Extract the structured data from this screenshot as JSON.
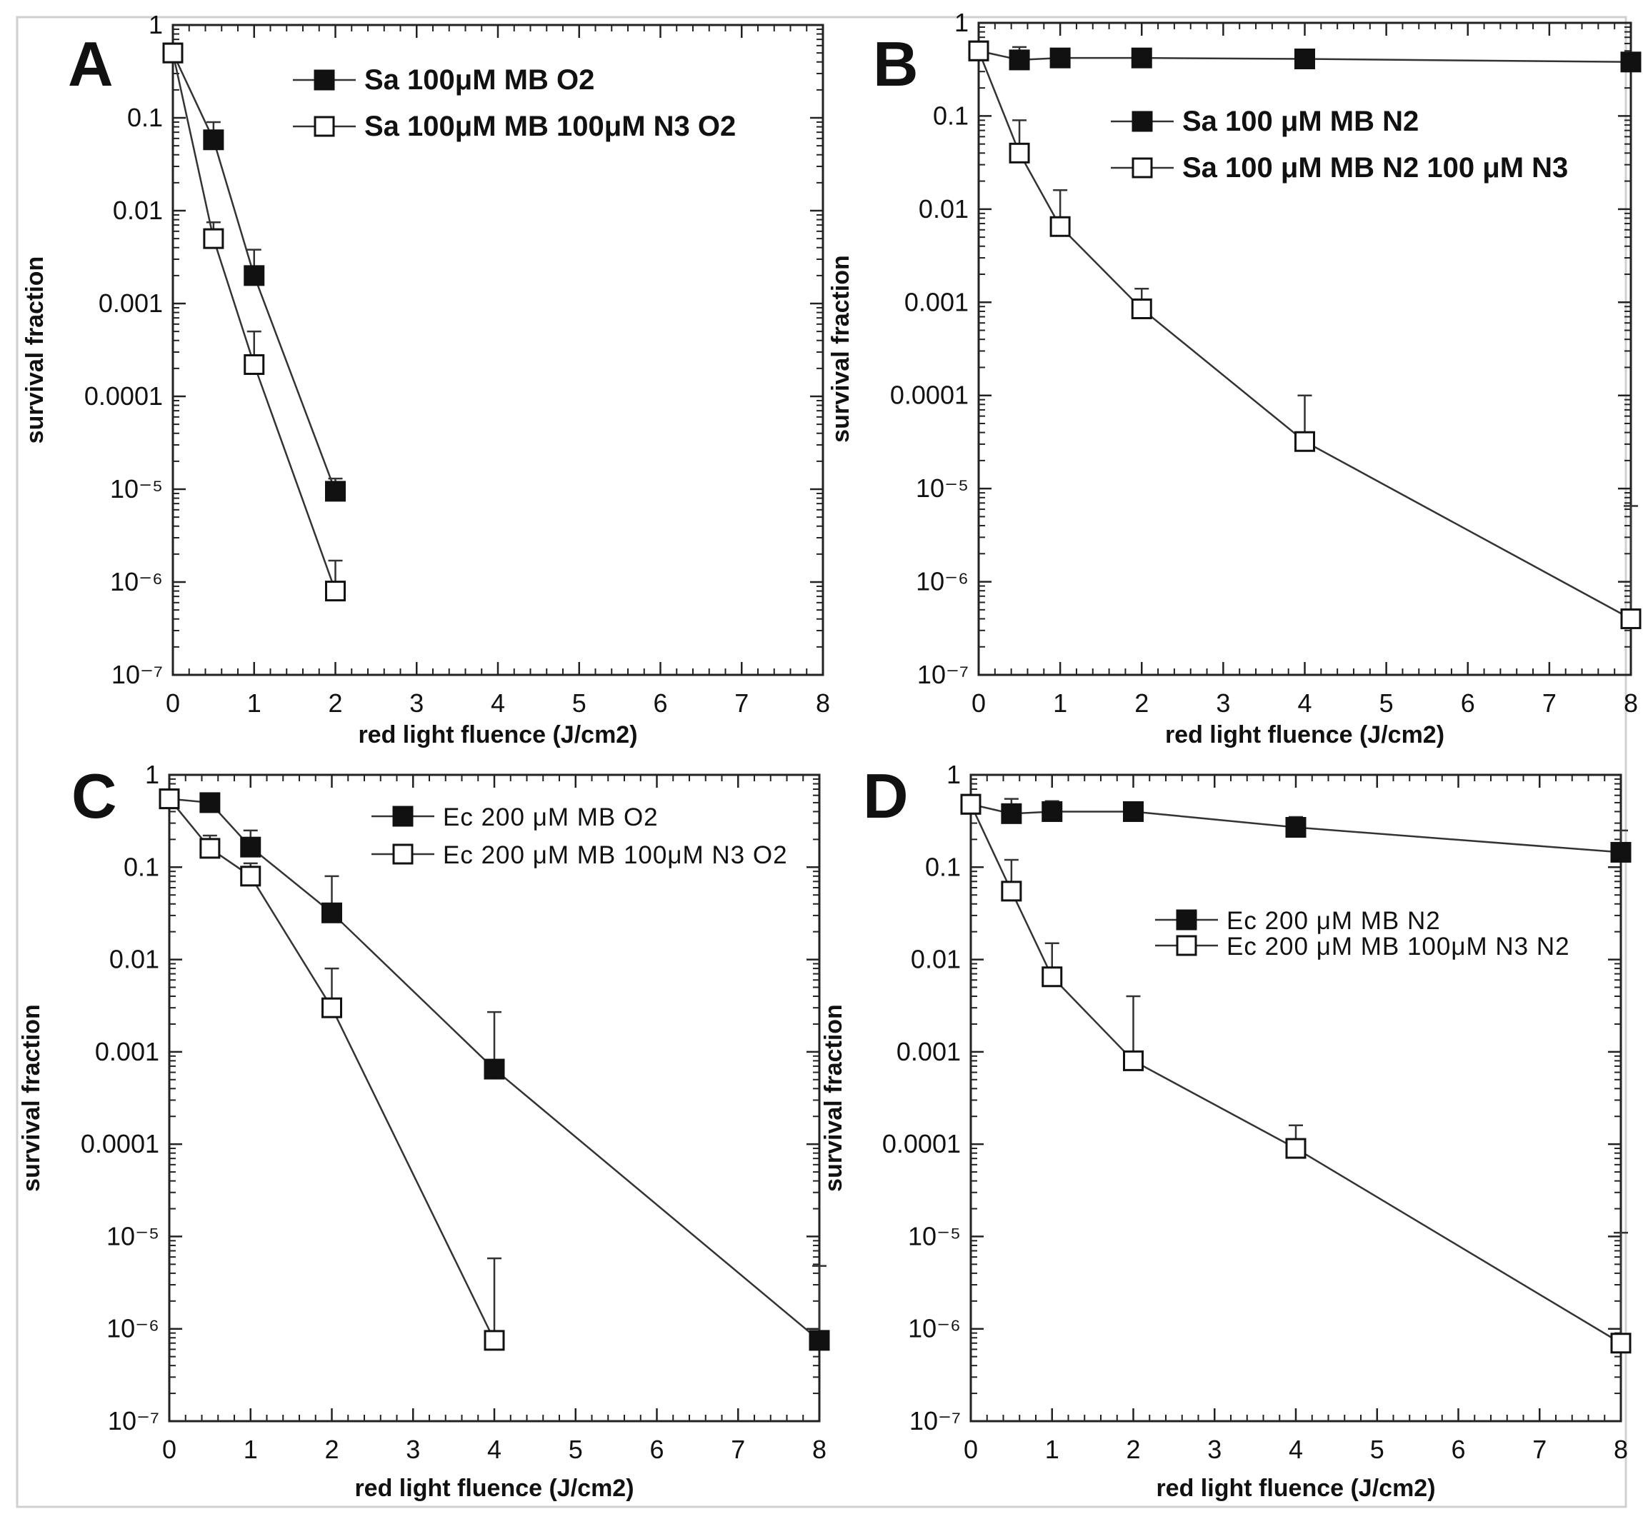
{
  "figure_title": "",
  "chart_data": [
    {
      "type": "line",
      "panel_label": "A",
      "xlabel": "red light fluence (J/cm2)",
      "ylabel": "survival fraction",
      "xlim": [
        0,
        8
      ],
      "ylim_log10": [
        -7,
        0
      ],
      "yscale": "log",
      "x_ticks": [
        "0",
        "1",
        "2",
        "3",
        "4",
        "5",
        "6",
        "7",
        "8"
      ],
      "y_ticks": [
        "1",
        "0.1",
        "0.01",
        "0.001",
        "0.0001",
        "10⁻⁵",
        "10⁻⁶",
        "10⁻⁷"
      ],
      "legend_position": "top-right",
      "series": [
        {
          "name": "Sa 100μM MB O2",
          "marker": "filled-square",
          "x": [
            0,
            0.5,
            1,
            2
          ],
          "y": [
            0.5,
            0.058,
            0.002,
            9.5e-06
          ],
          "err_upper": [
            null,
            0.09,
            0.0038,
            1.3e-05
          ]
        },
        {
          "name": "Sa 100μM MB  100μM N3 O2",
          "marker": "open-square",
          "x": [
            0,
            0.5,
            1,
            2
          ],
          "y": [
            0.5,
            0.005,
            0.00022,
            8e-07
          ],
          "err_upper": [
            null,
            0.0075,
            0.0005,
            1.7e-06
          ]
        }
      ]
    },
    {
      "type": "line",
      "panel_label": "B",
      "xlabel": "red light fluence (J/cm2)",
      "ylabel": "survival fraction",
      "xlim": [
        0,
        8
      ],
      "ylim_log10": [
        -7,
        0
      ],
      "yscale": "log",
      "x_ticks": [
        "0",
        "1",
        "2",
        "3",
        "4",
        "5",
        "6",
        "7",
        "8"
      ],
      "y_ticks": [
        "1",
        "0.1",
        "0.01",
        "0.001",
        "0.0001",
        "10⁻⁵",
        "10⁻⁶",
        "10⁻⁷"
      ],
      "legend_position": "top-right",
      "series": [
        {
          "name": "Sa 100 μM MB N2",
          "marker": "filled-square",
          "x": [
            0,
            0.5,
            1,
            2,
            4,
            8
          ],
          "y": [
            0.5,
            0.4,
            0.42,
            0.42,
            0.41,
            0.38
          ],
          "err_upper": [
            null,
            0.55,
            null,
            null,
            0.5,
            null
          ]
        },
        {
          "name": "Sa 100 μM MB N2 100 μM N3",
          "marker": "open-square",
          "x": [
            0,
            0.5,
            1,
            2,
            4,
            8
          ],
          "y": [
            0.5,
            0.04,
            0.0065,
            0.00085,
            3.2e-05,
            4e-07
          ],
          "err_upper": [
            null,
            0.09,
            0.016,
            0.0014,
            0.0001,
            6.5e-06
          ]
        }
      ]
    },
    {
      "type": "line",
      "panel_label": "C",
      "xlabel": "red light fluence (J/cm2)",
      "ylabel": "survival fraction",
      "xlim": [
        0,
        8
      ],
      "ylim_log10": [
        -7,
        0
      ],
      "yscale": "log",
      "x_ticks": [
        "0",
        "1",
        "2",
        "3",
        "4",
        "5",
        "6",
        "7",
        "8"
      ],
      "y_ticks": [
        "1",
        "0.1",
        "0.01",
        "0.001",
        "0.0001",
        "10⁻⁵",
        "10⁻⁶",
        "10⁻⁷"
      ],
      "legend_position": "top-right",
      "series": [
        {
          "name": "Ec 200 μM MB O2",
          "marker": "filled-square",
          "x": [
            0,
            0.5,
            1,
            2,
            4,
            8
          ],
          "y": [
            0.55,
            0.5,
            0.165,
            0.032,
            0.00065,
            7.5e-07
          ],
          "err_upper": [
            null,
            null,
            0.25,
            0.08,
            0.0027,
            4.8e-06
          ]
        },
        {
          "name": "Ec 200 μM MB 100μM N3 O2",
          "marker": "open-square",
          "x": [
            0,
            0.5,
            1,
            2,
            4
          ],
          "y": [
            0.55,
            0.16,
            0.08,
            0.003,
            7.5e-07
          ],
          "err_upper": [
            null,
            0.22,
            0.11,
            0.008,
            5.8e-06
          ]
        }
      ]
    },
    {
      "type": "line",
      "panel_label": "D",
      "xlabel": "red light fluence (J/cm2)",
      "ylabel": "survival fraction",
      "xlim": [
        0,
        8
      ],
      "ylim_log10": [
        -7,
        0
      ],
      "yscale": "log",
      "x_ticks": [
        "0",
        "1",
        "2",
        "3",
        "4",
        "5",
        "6",
        "7",
        "8"
      ],
      "y_ticks": [
        "1",
        "0.1",
        "0.01",
        "0.001",
        "0.0001",
        "10⁻⁵",
        "10⁻⁶",
        "10⁻⁷"
      ],
      "legend_position": "center-right",
      "series": [
        {
          "name": "Ec 200 μM MB N2",
          "marker": "filled-square",
          "x": [
            0,
            0.5,
            1,
            2,
            4,
            8
          ],
          "y": [
            0.48,
            0.38,
            0.4,
            0.4,
            0.27,
            0.145
          ],
          "err_upper": [
            null,
            0.55,
            0.52,
            null,
            0.35,
            0.25
          ]
        },
        {
          "name": "Ec 200 μM MB 100μM N3 N2",
          "marker": "open-square",
          "x": [
            0,
            0.5,
            1,
            2,
            4,
            8
          ],
          "y": [
            0.48,
            0.055,
            0.0065,
            0.0008,
            9e-05,
            7e-07
          ],
          "err_upper": [
            null,
            0.12,
            0.015,
            0.004,
            0.00016,
            1.1e-05
          ]
        }
      ]
    }
  ]
}
